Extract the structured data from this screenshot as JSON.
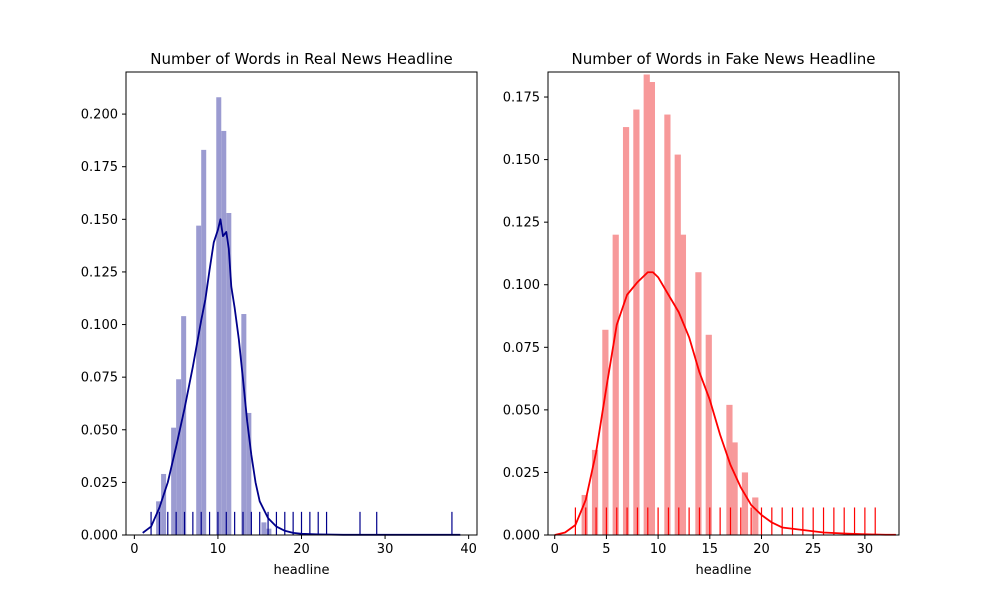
{
  "chart_data": [
    {
      "type": "bar",
      "title": "Number of Words in Real News Headline",
      "xlabel": "headline",
      "ylabel": "",
      "xlim": [
        -1,
        41
      ],
      "ylim": [
        0,
        0.22
      ],
      "xticks": [
        0,
        10,
        20,
        30,
        40
      ],
      "yticks": [
        0,
        0.025,
        0.05,
        0.075,
        0.1,
        0.125,
        0.15,
        0.175,
        0.2
      ],
      "ytick_labels": [
        "0.000",
        "0.025",
        "0.050",
        "0.075",
        "0.100",
        "0.125",
        "0.150",
        "0.175",
        "0.200"
      ],
      "grid": false,
      "colors": {
        "hist": "#9b9bd1",
        "kde": "#00008b",
        "rug": "#00008b"
      },
      "histogram": {
        "bin_width": 0.6,
        "bins": [
          {
            "x0": 2.6,
            "value": 0.016
          },
          {
            "x0": 3.2,
            "value": 0.029
          },
          {
            "x0": 4.4,
            "value": 0.051
          },
          {
            "x0": 5.0,
            "value": 0.074
          },
          {
            "x0": 5.6,
            "value": 0.104
          },
          {
            "x0": 7.4,
            "value": 0.147
          },
          {
            "x0": 8.0,
            "value": 0.183
          },
          {
            "x0": 9.8,
            "value": 0.208
          },
          {
            "x0": 10.4,
            "value": 0.192
          },
          {
            "x0": 11.0,
            "value": 0.153
          },
          {
            "x0": 12.8,
            "value": 0.105
          },
          {
            "x0": 13.4,
            "value": 0.058
          },
          {
            "x0": 15.2,
            "value": 0.006
          },
          {
            "x0": 15.8,
            "value": 0.003
          }
        ]
      },
      "kde": {
        "x": [
          1,
          2,
          3,
          4,
          5,
          6,
          7,
          8,
          8.5,
          9,
          9.5,
          10,
          10.3,
          10.6,
          11,
          11.3,
          11.6,
          12,
          12.5,
          13,
          13.5,
          14,
          14.5,
          15,
          16,
          17,
          18,
          19,
          20,
          22,
          25,
          30,
          35,
          39
        ],
        "y": [
          0.001,
          0.004,
          0.013,
          0.025,
          0.042,
          0.06,
          0.08,
          0.102,
          0.112,
          0.126,
          0.139,
          0.145,
          0.15,
          0.142,
          0.144,
          0.136,
          0.118,
          0.108,
          0.093,
          0.074,
          0.054,
          0.038,
          0.025,
          0.016,
          0.008,
          0.004,
          0.002,
          0.001,
          0.0006,
          0.0003,
          0.0001,
          0.0001,
          0.0001,
          0.0001
        ]
      },
      "rug": {
        "height": 0.011,
        "values": [
          2,
          3,
          4,
          5,
          6,
          7,
          8,
          9,
          10,
          11,
          12,
          13,
          14,
          15,
          16,
          17,
          18,
          19,
          20,
          21,
          22,
          23,
          27,
          29,
          38
        ]
      }
    },
    {
      "type": "bar",
      "title": "Number of Words in Fake News Headline",
      "xlabel": "headline",
      "ylabel": "",
      "xlim": [
        -0.65,
        33.3
      ],
      "ylim": [
        0,
        0.185
      ],
      "xticks": [
        0,
        5,
        10,
        15,
        20,
        25,
        30
      ],
      "yticks": [
        0,
        0.025,
        0.05,
        0.075,
        0.1,
        0.125,
        0.15,
        0.175
      ],
      "ytick_labels": [
        "0.000",
        "0.025",
        "0.050",
        "0.075",
        "0.100",
        "0.125",
        "0.150",
        "0.175"
      ],
      "grid": false,
      "colors": {
        "hist": "#f7999a",
        "kde": "#ff0000",
        "rug": "#ff0000"
      },
      "histogram": {
        "bin_width": 0.6,
        "bins": [
          {
            "x0": 2.6,
            "value": 0.016
          },
          {
            "x0": 3.6,
            "value": 0.034
          },
          {
            "x0": 4.6,
            "value": 0.082
          },
          {
            "x0": 5.6,
            "value": 0.12
          },
          {
            "x0": 6.6,
            "value": 0.163
          },
          {
            "x0": 7.6,
            "value": 0.17
          },
          {
            "x0": 8.6,
            "value": 0.184
          },
          {
            "x0": 9.1,
            "value": 0.181
          },
          {
            "x0": 10.6,
            "value": 0.168
          },
          {
            "x0": 11.6,
            "value": 0.152
          },
          {
            "x0": 12.1,
            "value": 0.12
          },
          {
            "x0": 13.6,
            "value": 0.105
          },
          {
            "x0": 14.6,
            "value": 0.08
          },
          {
            "x0": 16.6,
            "value": 0.052
          },
          {
            "x0": 17.1,
            "value": 0.037
          },
          {
            "x0": 18.1,
            "value": 0.025
          },
          {
            "x0": 19.1,
            "value": 0.015
          }
        ]
      },
      "kde": {
        "x": [
          0,
          1,
          2,
          3,
          4,
          5,
          6,
          7,
          8,
          9,
          9.5,
          10,
          11,
          12,
          13,
          14,
          15,
          16,
          17,
          18,
          19,
          20,
          21,
          22,
          24,
          26,
          28,
          30,
          32,
          33
        ],
        "y": [
          0.0,
          0.001,
          0.004,
          0.014,
          0.033,
          0.059,
          0.084,
          0.096,
          0.101,
          0.105,
          0.105,
          0.103,
          0.096,
          0.089,
          0.079,
          0.065,
          0.054,
          0.04,
          0.028,
          0.019,
          0.012,
          0.008,
          0.005,
          0.003,
          0.002,
          0.001,
          0.0006,
          0.0003,
          0.0001,
          0.0001
        ]
      },
      "rug": {
        "height": 0.011,
        "values": [
          2,
          3,
          4,
          5,
          6,
          7,
          8,
          9,
          10,
          11,
          12,
          13,
          14,
          15,
          16,
          17,
          18,
          19,
          20,
          21,
          22,
          23,
          24,
          25,
          26,
          27,
          28,
          29,
          30,
          31
        ]
      }
    }
  ]
}
